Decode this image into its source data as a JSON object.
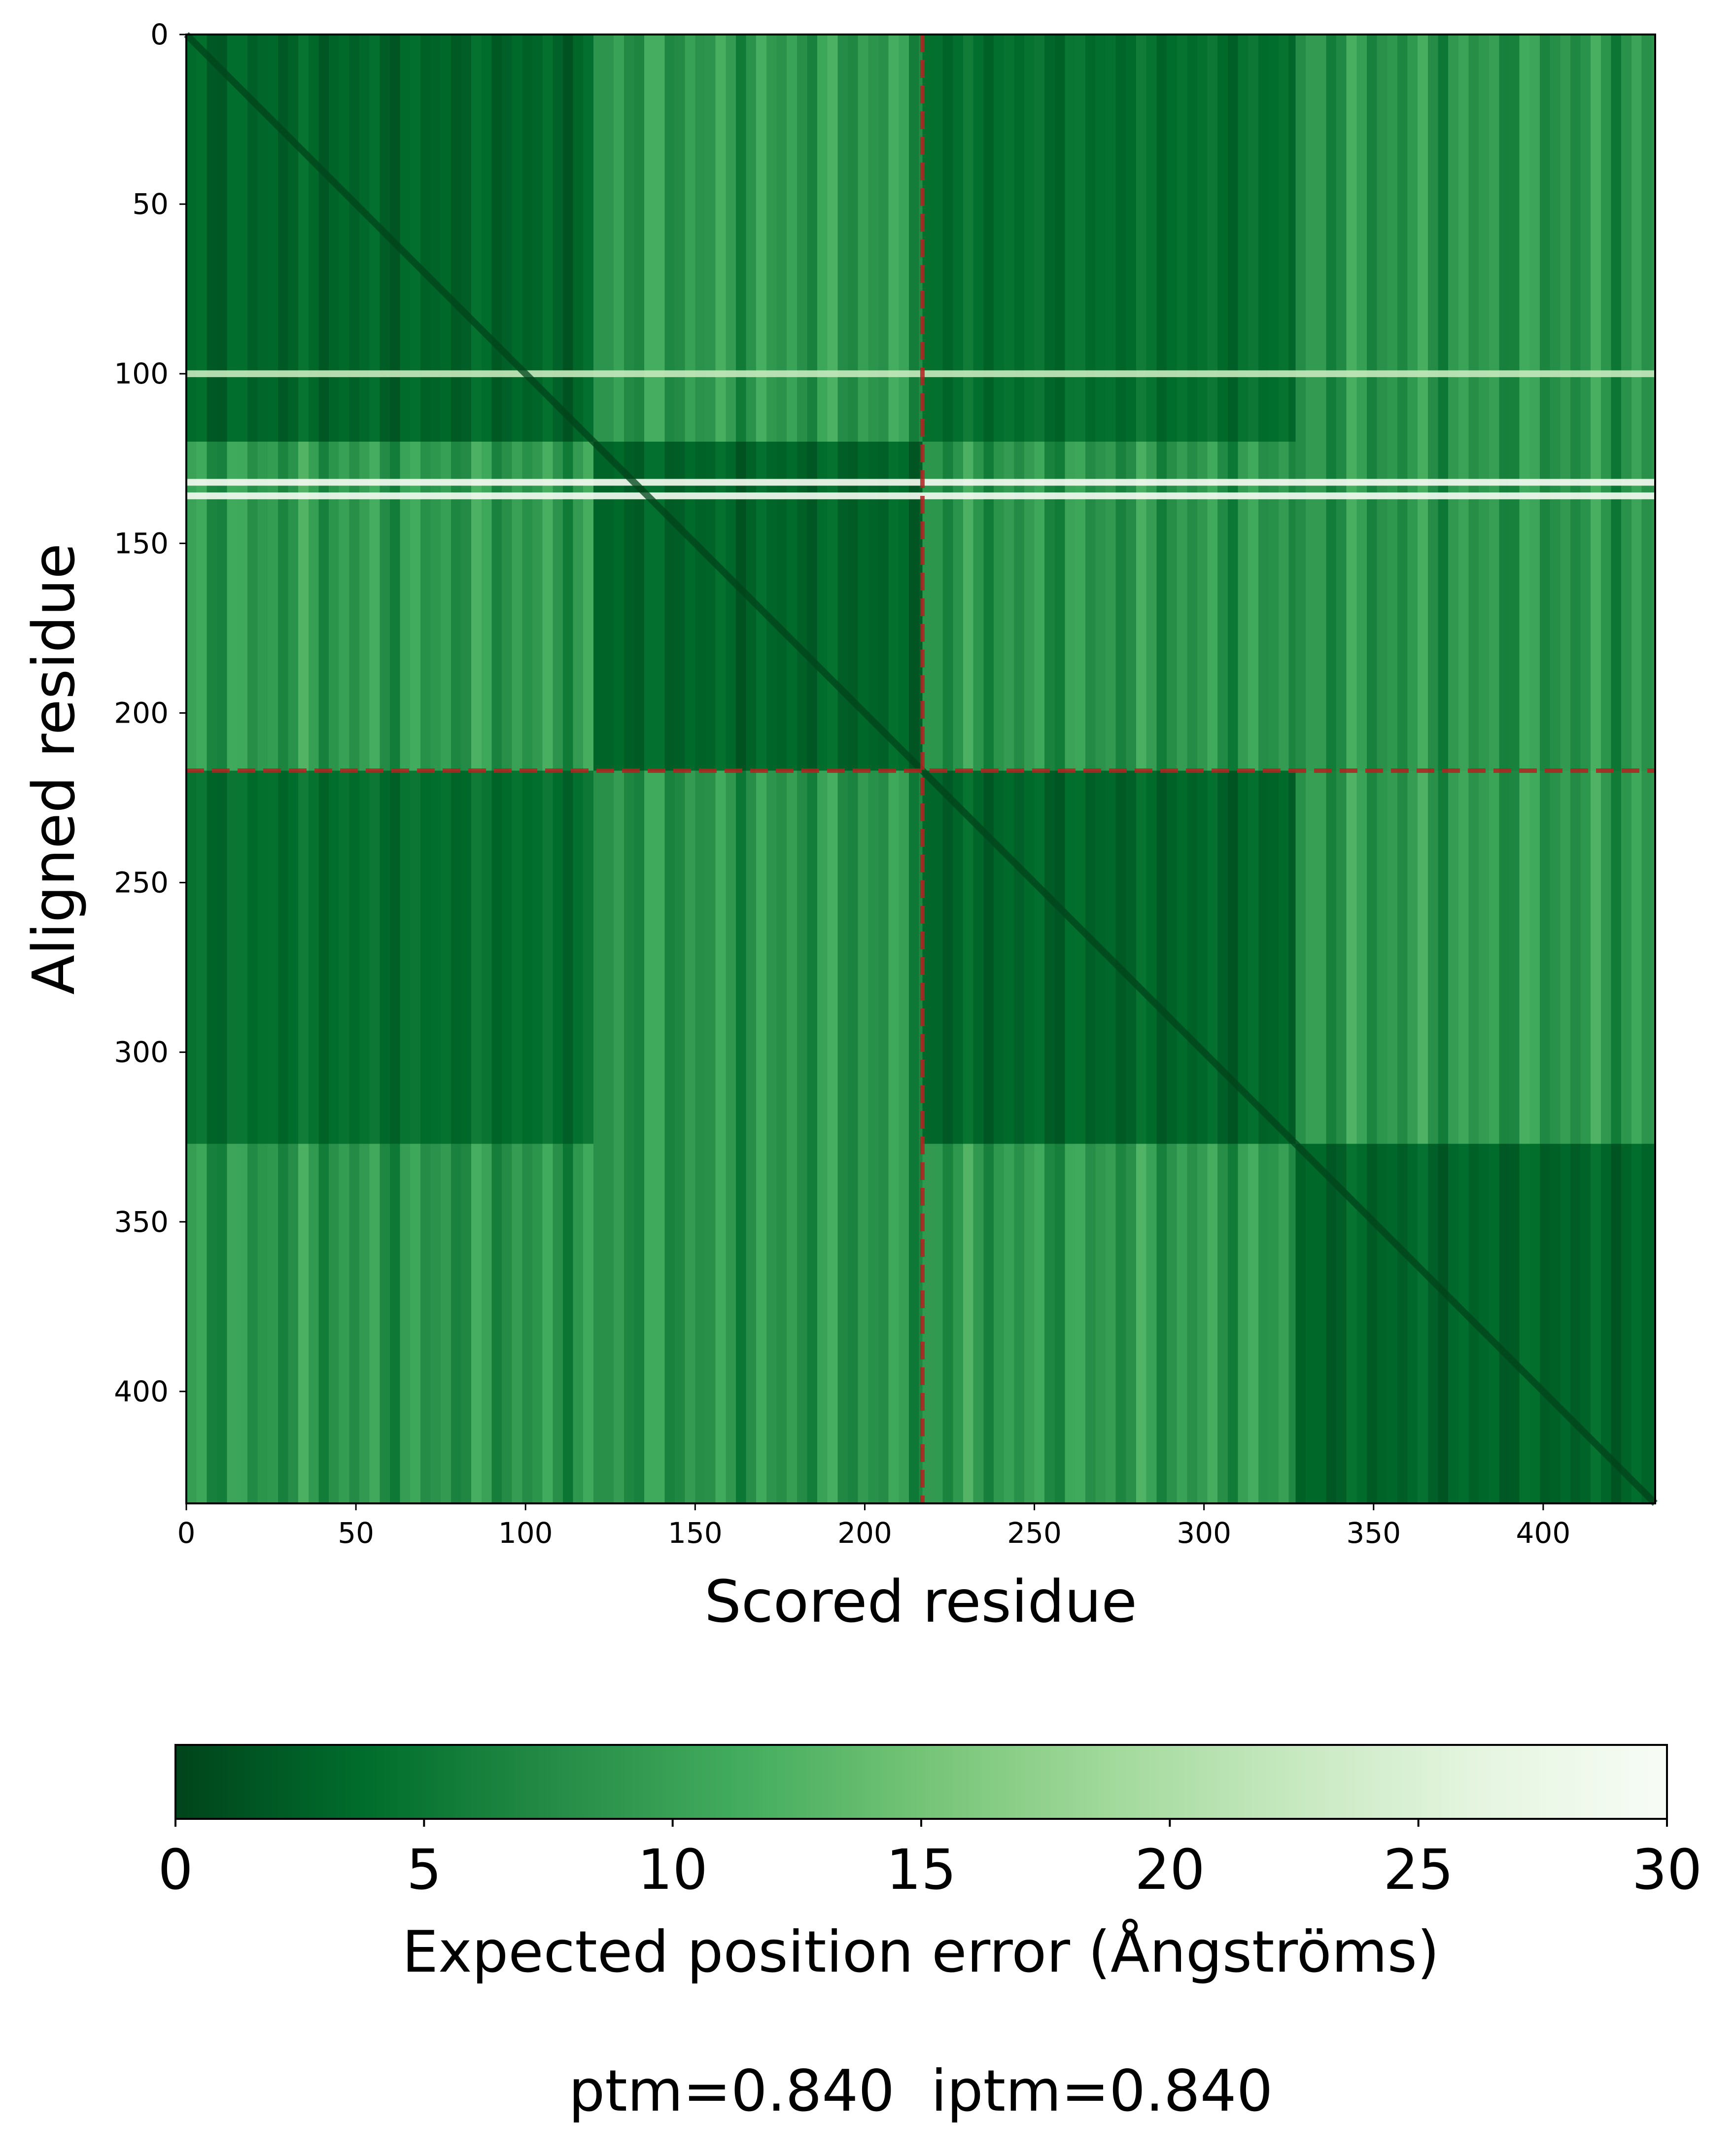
{
  "chart_data": {
    "type": "heatmap",
    "title": "",
    "xlabel": "Scored residue",
    "ylabel": "Aligned residue",
    "n_residues": 433,
    "chain_boundary": 217,
    "xlim": [
      0,
      433
    ],
    "ylim": [
      433,
      0
    ],
    "xticks": [
      0,
      50,
      100,
      150,
      200,
      250,
      300,
      350,
      400
    ],
    "yticks": [
      0,
      50,
      100,
      150,
      200,
      250,
      300,
      350,
      400
    ],
    "colormap": "Greens_r",
    "colorbar": {
      "label": "Expected position error (Ångströms)",
      "min": 0,
      "max": 30,
      "ticks": [
        0,
        5,
        10,
        15,
        20,
        25,
        30
      ],
      "orientation": "horizontal"
    },
    "domains": [
      [
        0,
        120
      ],
      [
        120,
        217
      ],
      [
        217,
        327
      ],
      [
        327,
        433
      ]
    ],
    "pae_levels": {
      "within_domain": 3,
      "domains_0_and_2": 4,
      "same_chain_other_domain": 9,
      "other_pairs": 8.5
    },
    "high_error_rows": [
      {
        "residue": 100,
        "value": 22
      },
      {
        "residue": 132,
        "value": 29
      },
      {
        "residue": 136,
        "value": 29
      }
    ],
    "boundary_line_color": "#b22222"
  },
  "footer": {
    "text": "ptm=0.840  iptm=0.840"
  }
}
